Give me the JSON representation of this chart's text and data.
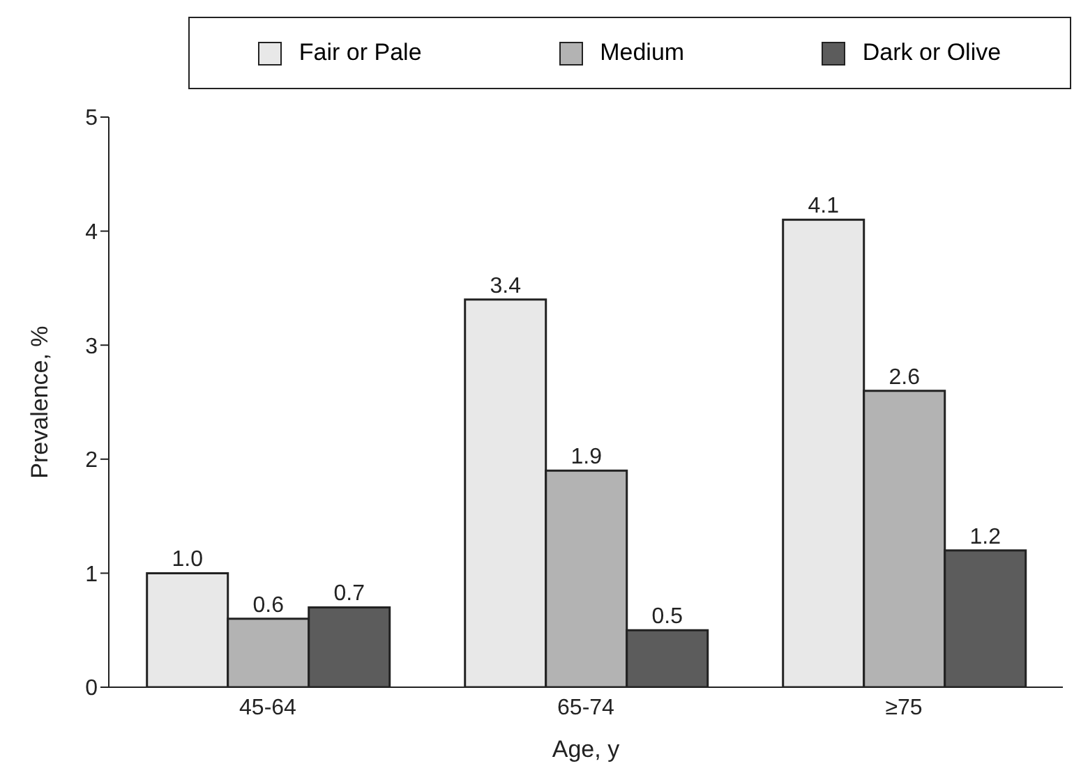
{
  "chart_data": {
    "type": "bar",
    "xlabel": "Age, y",
    "ylabel": "Prevalence, %",
    "categories": [
      "45-64",
      "65-74",
      "≥75"
    ],
    "series": [
      {
        "name": "Fair or Pale",
        "color": "#e8e8e8",
        "values": [
          1.0,
          3.4,
          4.1
        ],
        "value_labels": [
          "1.0",
          "3.4",
          "4.1"
        ]
      },
      {
        "name": "Medium",
        "color": "#b3b3b3",
        "values": [
          0.6,
          1.9,
          2.6
        ],
        "value_labels": [
          "0.6",
          "1.9",
          "2.6"
        ]
      },
      {
        "name": "Dark or Olive",
        "color": "#5c5c5c",
        "values": [
          0.7,
          0.5,
          1.2
        ],
        "value_labels": [
          "0.7",
          "0.5",
          "1.2"
        ]
      }
    ],
    "ylim": [
      0,
      5
    ],
    "yticks": [
      0,
      1,
      2,
      3,
      4,
      5
    ],
    "grid": false,
    "legend": "top"
  }
}
